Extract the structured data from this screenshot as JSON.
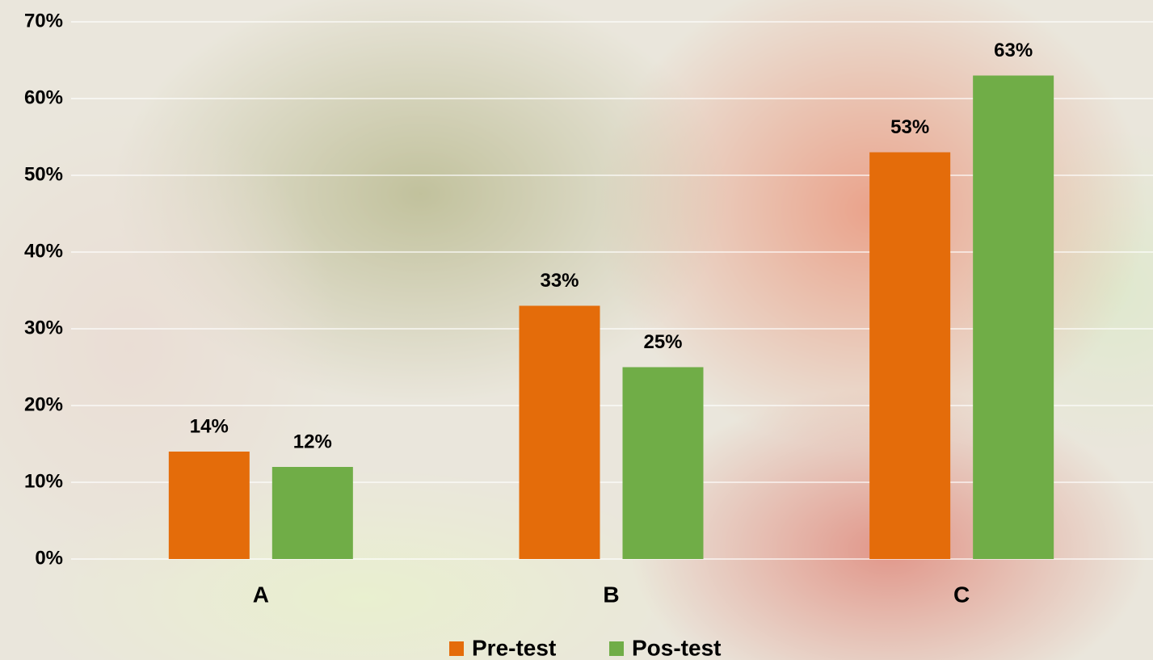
{
  "chart_data": {
    "type": "bar",
    "categories": [
      "A",
      "B",
      "C"
    ],
    "series": [
      {
        "name": "Pre-test",
        "color": "#e46c0a",
        "values": [
          14,
          33,
          53
        ],
        "value_labels": [
          "14%",
          "33%",
          "53%"
        ]
      },
      {
        "name": "Pos-test",
        "color": "#70ad47",
        "values": [
          12,
          25,
          63
        ],
        "value_labels": [
          "12%",
          "25%",
          "63%"
        ]
      }
    ],
    "ylim": [
      0,
      70
    ],
    "yticks": [
      {
        "value": 0,
        "label": "0%"
      },
      {
        "value": 10,
        "label": "10%"
      },
      {
        "value": 20,
        "label": "20%"
      },
      {
        "value": 30,
        "label": "30%"
      },
      {
        "value": 40,
        "label": "40%"
      },
      {
        "value": 50,
        "label": "50%"
      },
      {
        "value": 60,
        "label": "60%"
      },
      {
        "value": 70,
        "label": "70%"
      }
    ],
    "grid": true,
    "legend": "bottom"
  }
}
